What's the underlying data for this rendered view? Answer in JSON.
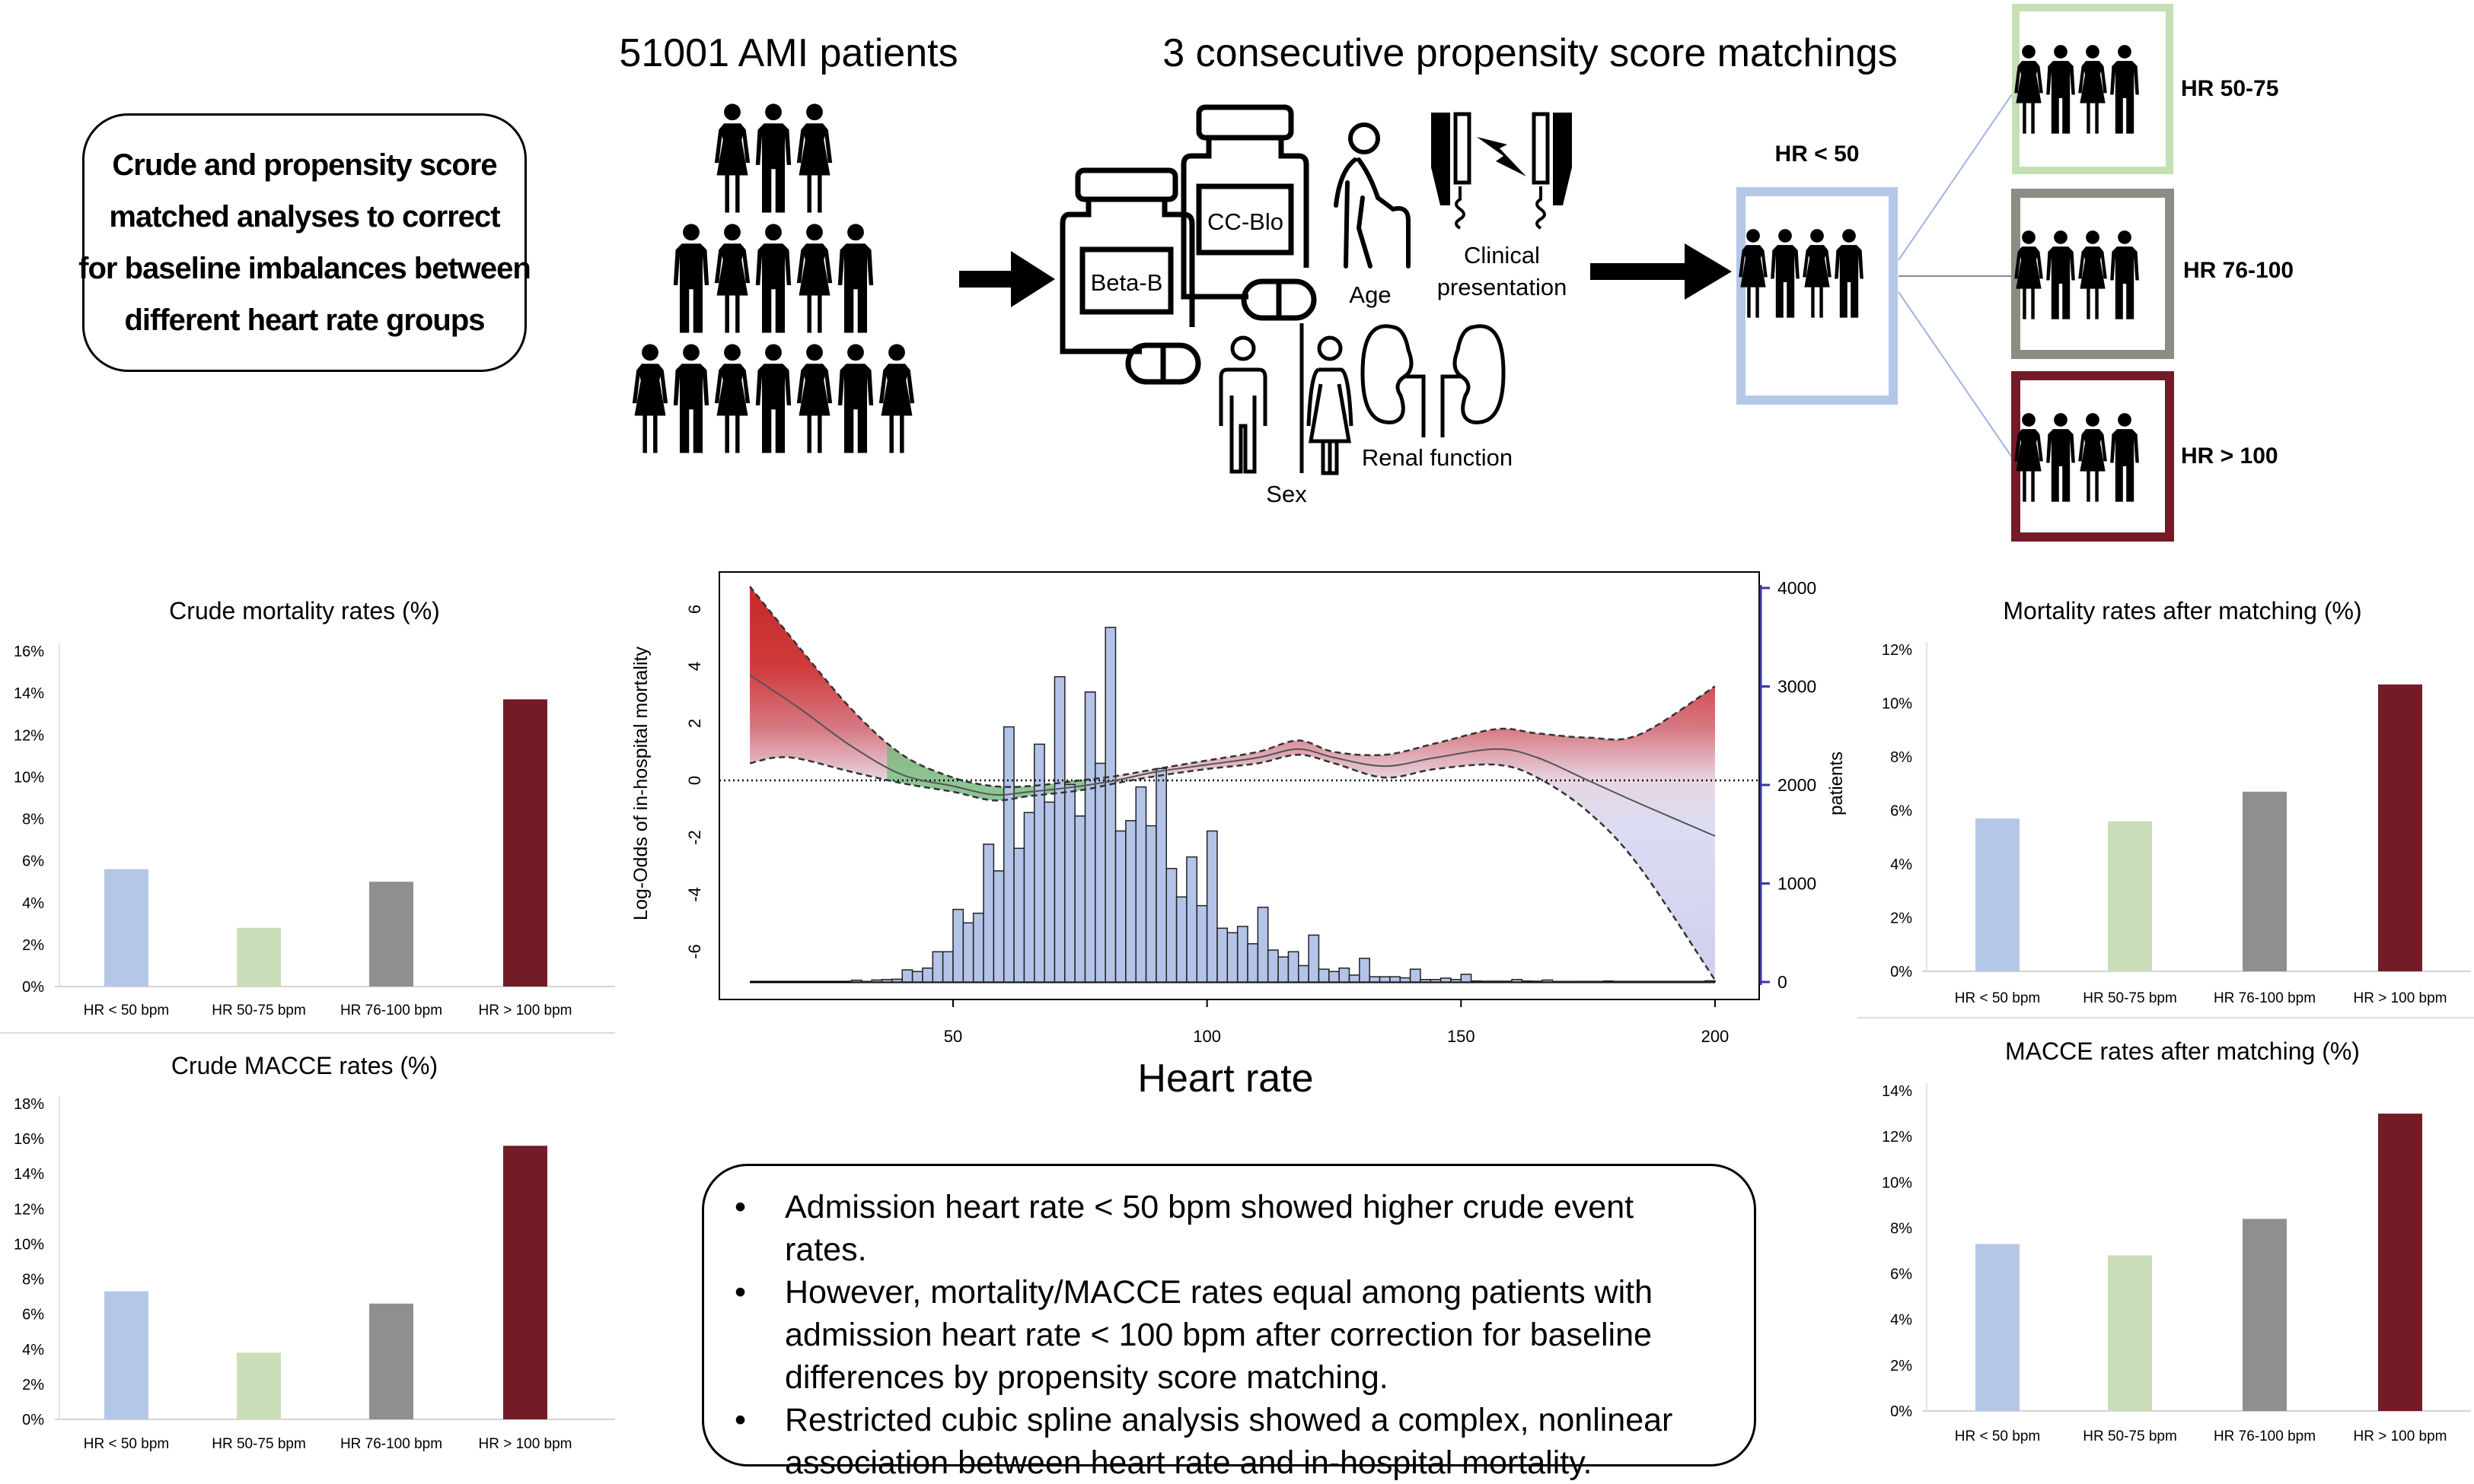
{
  "intro": {
    "lines": [
      "Crude and propensity score",
      "matched analyses to correct",
      "for baseline imbalances between",
      "different heart rate groups"
    ]
  },
  "population": {
    "title": "51001 AMI patients",
    "icon": "people-group-icon"
  },
  "matching": {
    "title": "3 consecutive propensity score matchings",
    "covariates": {
      "beta_blocker": "Beta-B",
      "cc_blocker": "CC-Blo",
      "age": "Age",
      "clinical_1": "Clinical",
      "clinical_2": "presentation",
      "sex": "Sex",
      "renal": "Renal function"
    },
    "reference_group": {
      "label": "HR < 50",
      "color": "#b4c7e7"
    },
    "compared_groups": [
      {
        "label": "HR 50-75",
        "color": "#c5e0b4"
      },
      {
        "label": "HR 76-100",
        "color": "#8c8c84"
      },
      {
        "label": "HR > 100",
        "color": "#731c28"
      }
    ]
  },
  "colors": {
    "hr_lt_50": "#b4c7e7",
    "hr_50_75": "#c9deb9",
    "hr_76_100": "#8f8f8f",
    "hr_gt_100": "#731c28",
    "histogram": "#b4c3e8",
    "right_axis": "#3a3aa0",
    "ci_green": "#6fbf7a"
  },
  "summary": {
    "bullet": "•",
    "items": [
      [
        "Admission heart rate < 50 bpm showed higher crude event rates."
      ],
      [
        "However, mortality/MACCE rates equal among patients with",
        "admission heart rate < 100 bpm after correction for baseline",
        "differences by propensity score matching."
      ],
      [
        "Restricted cubic spline analysis showed a complex, nonlinear",
        "association between heart rate and in-hospital mortality."
      ]
    ]
  },
  "chart_data": [
    {
      "type": "bar",
      "title": "Crude mortality rates (%)",
      "categories": [
        "HR < 50 bpm",
        "HR 50-75 bpm",
        "HR 76-100 bpm",
        "HR > 100 bpm"
      ],
      "values": [
        5.6,
        2.8,
        5.0,
        13.7
      ],
      "ylim": [
        0,
        16
      ],
      "yticks": [
        0,
        2,
        4,
        6,
        8,
        10,
        12,
        14,
        16
      ],
      "tick_suffix": "%",
      "grid": false
    },
    {
      "type": "bar",
      "title": "Crude MACCE rates (%)",
      "categories": [
        "HR < 50 bpm",
        "HR 50-75 bpm",
        "HR 76-100 bpm",
        "HR > 100 bpm"
      ],
      "values": [
        7.3,
        3.8,
        6.6,
        15.6
      ],
      "ylim": [
        0,
        18
      ],
      "yticks": [
        0,
        2,
        4,
        6,
        8,
        10,
        12,
        14,
        16,
        18
      ],
      "tick_suffix": "%",
      "grid": false
    },
    {
      "type": "bar",
      "title": "Mortality rates after matching (%)",
      "categories": [
        "HR < 50 bpm",
        "HR 50-75 bpm",
        "HR 76-100 bpm",
        "HR > 100 bpm"
      ],
      "values": [
        5.7,
        5.6,
        6.7,
        10.7
      ],
      "ylim": [
        0,
        12
      ],
      "yticks": [
        0,
        2,
        4,
        6,
        8,
        10,
        12
      ],
      "tick_suffix": "%",
      "grid": false
    },
    {
      "type": "bar",
      "title": "MACCE rates after matching (%)",
      "categories": [
        "HR < 50 bpm",
        "HR 50-75 bpm",
        "HR 76-100 bpm",
        "HR > 100 bpm"
      ],
      "values": [
        7.3,
        6.8,
        8.4,
        13.0
      ],
      "ylim": [
        0,
        14
      ],
      "yticks": [
        0,
        2,
        4,
        6,
        8,
        10,
        12,
        14
      ],
      "tick_suffix": "%",
      "grid": false
    },
    {
      "type": "line",
      "xlabel": "Heart rate",
      "ylabel": "Log-Odds of in-hospital mortality",
      "y2label": "patients",
      "xticks": [
        50,
        100,
        150,
        200
      ],
      "yticks": [
        -6,
        -4,
        -2,
        0,
        2,
        4,
        6
      ],
      "y2ticks": [
        0,
        1000,
        2000,
        3000,
        4000
      ],
      "xlim": [
        10,
        200
      ],
      "ylim": [
        -7.1,
        6.8
      ],
      "y2lim": [
        0,
        4000
      ],
      "reference_line": 0,
      "spline": {
        "x": [
          10,
          15,
          20,
          30,
          40,
          50,
          58,
          65,
          75,
          82,
          90,
          100,
          110,
          118,
          125,
          135,
          145,
          157,
          165,
          175,
          185,
          200
        ],
        "fit": [
          3.7,
          3.1,
          2.5,
          1.2,
          0.2,
          -0.2,
          -0.5,
          -0.4,
          -0.2,
          0.0,
          0.3,
          0.55,
          0.8,
          1.1,
          0.8,
          0.5,
          0.8,
          1.1,
          0.8,
          0.0,
          -0.8,
          -1.95
        ],
        "upper": [
          6.8,
          5.7,
          4.6,
          2.5,
          0.9,
          0.1,
          -0.2,
          -0.2,
          0.0,
          0.15,
          0.4,
          0.7,
          1.0,
          1.4,
          1.0,
          0.9,
          1.3,
          1.8,
          1.65,
          1.5,
          1.6,
          3.3
        ],
        "lower": [
          0.6,
          0.8,
          0.75,
          0.3,
          -0.1,
          -0.4,
          -0.7,
          -0.55,
          -0.35,
          -0.1,
          0.15,
          0.4,
          0.6,
          0.9,
          0.6,
          0.1,
          0.4,
          0.55,
          0.1,
          -1.1,
          -3.0,
          -7.0
        ]
      },
      "histogram": {
        "bin_start": 30,
        "bin_width": 2,
        "counts": [
          18,
          5,
          20,
          25,
          28,
          123,
          106,
          141,
          307,
          307,
          737,
          600,
          698,
          1399,
          1128,
          2590,
          1357,
          1720,
          2414,
          1826,
          3099,
          2005,
          1685,
          2944,
          2220,
          3600,
          1533,
          1638,
          1980,
          1586,
          2167,
          1152,
          863,
          1269,
          775,
          1533,
          546,
          500,
          564,
          388,
          758,
          324,
          254,
          307,
          166,
          476,
          130,
          106,
          141,
          70,
          240,
          53,
          53,
          53,
          42,
          130,
          25,
          25,
          39,
          25,
          78,
          10,
          8,
          8,
          8,
          25,
          10,
          8,
          20,
          5,
          5,
          3,
          3,
          3,
          10,
          2,
          2,
          2,
          2,
          2,
          2,
          2,
          2,
          2,
          12
        ]
      }
    }
  ]
}
